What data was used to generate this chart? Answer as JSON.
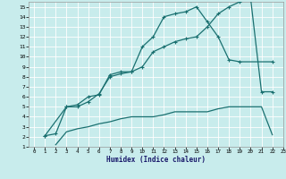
{
  "xlabel": "Humidex (Indice chaleur)",
  "bg_color": "#c8ecec",
  "grid_color": "#ffffff",
  "line_color": "#1a7070",
  "xlim": [
    -0.5,
    23
  ],
  "ylim": [
    1,
    15.5
  ],
  "xticks": [
    0,
    1,
    2,
    3,
    4,
    5,
    6,
    7,
    8,
    9,
    10,
    11,
    12,
    13,
    14,
    15,
    16,
    17,
    18,
    19,
    20,
    21,
    22,
    23
  ],
  "yticks": [
    1,
    2,
    3,
    4,
    5,
    6,
    7,
    8,
    9,
    10,
    11,
    12,
    13,
    14,
    15
  ],
  "line1_x": [
    1,
    2,
    3,
    4,
    5,
    6,
    7,
    8,
    9,
    10,
    11,
    12,
    13,
    14,
    15,
    16,
    17,
    18,
    19,
    22
  ],
  "line1_y": [
    2.1,
    2.3,
    5.0,
    5.2,
    6.0,
    6.2,
    8.2,
    8.5,
    8.5,
    11.0,
    12.0,
    14.0,
    14.3,
    14.5,
    15.0,
    13.5,
    12.0,
    9.7,
    9.5,
    9.5
  ],
  "line2_x": [
    1,
    3,
    4,
    5,
    6,
    7,
    8,
    9,
    10,
    11,
    12,
    13,
    14,
    15,
    16,
    17,
    18,
    19,
    20,
    21,
    22
  ],
  "line2_y": [
    2.1,
    5.0,
    5.0,
    5.5,
    6.3,
    8.0,
    8.3,
    8.5,
    9.0,
    10.5,
    11.0,
    11.5,
    11.8,
    12.0,
    13.0,
    14.3,
    15.0,
    15.5,
    15.8,
    6.5,
    6.5
  ],
  "line3_x": [
    2,
    3,
    4,
    5,
    6,
    7,
    8,
    9,
    10,
    11,
    12,
    13,
    14,
    15,
    16,
    17,
    18,
    19,
    20,
    21,
    22
  ],
  "line3_y": [
    1.2,
    2.5,
    2.8,
    3.0,
    3.3,
    3.5,
    3.8,
    4.0,
    4.0,
    4.0,
    4.2,
    4.5,
    4.5,
    4.5,
    4.5,
    4.8,
    5.0,
    5.0,
    5.0,
    5.0,
    2.2
  ]
}
